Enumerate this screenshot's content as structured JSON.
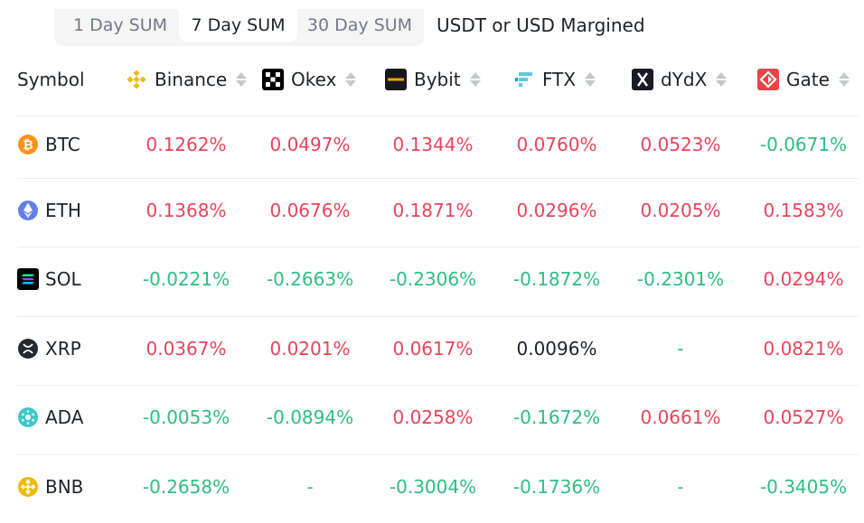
{
  "tabs": [
    "1 Day SUM",
    "7 Day SUM",
    "30 Day SUM"
  ],
  "active_tab": "7 Day SUM",
  "margin_label": "USDT or USD Margined",
  "columns": {
    "symbol": "Symbol",
    "exchanges": [
      "Binance",
      "Okex",
      "Bybit",
      "FTX",
      "dYdX",
      "Gate"
    ]
  },
  "colors": {
    "positive": "#e8445c",
    "negative": "#2ebd85",
    "neutral": "#1e2329"
  },
  "rows": [
    {
      "symbol": "BTC",
      "icon": "btc-icon",
      "values": [
        "0.1262%",
        "0.0497%",
        "0.1344%",
        "0.0760%",
        "0.0523%",
        "-0.0671%"
      ]
    },
    {
      "symbol": "ETH",
      "icon": "eth-icon",
      "values": [
        "0.1368%",
        "0.0676%",
        "0.1871%",
        "0.0296%",
        "0.0205%",
        "0.1583%"
      ]
    },
    {
      "symbol": "SOL",
      "icon": "sol-icon",
      "values": [
        "-0.0221%",
        "-0.2663%",
        "-0.2306%",
        "-0.1872%",
        "-0.2301%",
        "0.0294%"
      ]
    },
    {
      "symbol": "XRP",
      "icon": "xrp-icon",
      "values": [
        "0.0367%",
        "0.0201%",
        "0.0617%",
        "0.0096%",
        "-",
        "0.0821%"
      ]
    },
    {
      "symbol": "ADA",
      "icon": "ada-icon",
      "values": [
        "-0.0053%",
        "-0.0894%",
        "0.0258%",
        "-0.1672%",
        "0.0661%",
        "0.0527%"
      ]
    },
    {
      "symbol": "BNB",
      "icon": "bnb-icon",
      "values": [
        "-0.2658%",
        "-",
        "-0.3004%",
        "-0.1736%",
        "-",
        "-0.3405%"
      ]
    }
  ]
}
